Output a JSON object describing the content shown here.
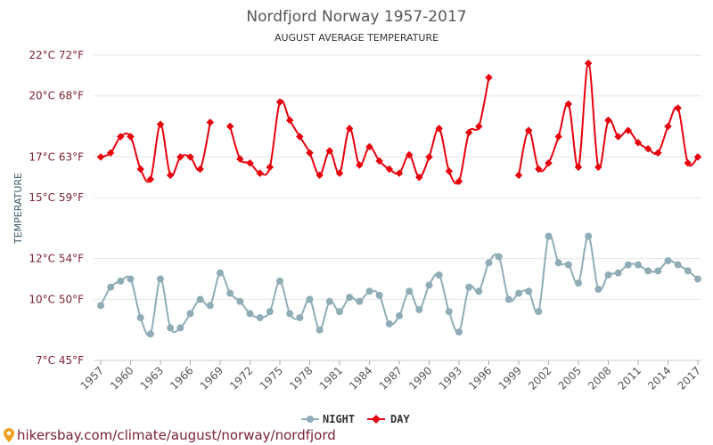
{
  "chart_data": {
    "type": "line",
    "title": "Nordfjord Norway 1957-2017",
    "subtitle": "AUGUST AVERAGE TEMPERATURE",
    "ylabel": "TEMPERATURE",
    "xlabel": "",
    "ylim": [
      7,
      22
    ],
    "x_ticks": [
      1957,
      1960,
      1963,
      1966,
      1969,
      1972,
      1975,
      1978,
      1981,
      1984,
      1987,
      1990,
      1993,
      1996,
      1999,
      2002,
      2005,
      2008,
      2011,
      2014,
      2017
    ],
    "y_ticks": [
      {
        "value": 7,
        "label": "7°C 45°F"
      },
      {
        "value": 10,
        "label": "10°C 50°F"
      },
      {
        "value": 12,
        "label": "12°C 54°F"
      },
      {
        "value": 15,
        "label": "15°C 59°F"
      },
      {
        "value": 17,
        "label": "17°C 63°F"
      },
      {
        "value": 20,
        "label": "20°C 68°F"
      },
      {
        "value": 22,
        "label": "22°C 72°F"
      }
    ],
    "grid": true,
    "legend_position": "bottom-center",
    "x": [
      1957,
      1958,
      1959,
      1960,
      1961,
      1962,
      1963,
      1964,
      1965,
      1966,
      1967,
      1968,
      1969,
      1970,
      1971,
      1972,
      1973,
      1974,
      1975,
      1976,
      1977,
      1978,
      1979,
      1980,
      1981,
      1982,
      1983,
      1984,
      1985,
      1986,
      1987,
      1988,
      1989,
      1990,
      1991,
      1992,
      1993,
      1994,
      1995,
      1996,
      1997,
      1998,
      1999,
      2000,
      2001,
      2002,
      2003,
      2004,
      2005,
      2006,
      2007,
      2008,
      2009,
      2010,
      2011,
      2012,
      2013,
      2014,
      2015,
      2016,
      2017
    ],
    "series": [
      {
        "name": "NIGHT",
        "color": "#8fadb7",
        "values": [
          9.7,
          10.6,
          10.9,
          11.0,
          9.1,
          8.3,
          11.0,
          8.6,
          8.6,
          9.3,
          10.0,
          9.7,
          11.3,
          10.3,
          9.9,
          9.3,
          9.1,
          9.4,
          10.9,
          9.3,
          9.1,
          10.0,
          8.5,
          9.9,
          9.4,
          10.1,
          9.9,
          10.4,
          10.2,
          8.8,
          9.2,
          10.4,
          9.5,
          10.7,
          11.2,
          9.4,
          8.4,
          10.6,
          10.4,
          11.8,
          12.1,
          10.0,
          10.3,
          10.4,
          9.4,
          13.1,
          11.8,
          11.7,
          10.8,
          13.1,
          10.5,
          11.2,
          11.3,
          11.7,
          11.7,
          11.4,
          11.4,
          11.9,
          11.7,
          11.4,
          11.0
        ]
      },
      {
        "name": "DAY",
        "color": "#e8000b",
        "values": [
          17.0,
          17.2,
          18.0,
          18.0,
          16.4,
          15.9,
          18.6,
          16.1,
          17.0,
          17.0,
          16.4,
          18.7,
          null,
          18.5,
          16.9,
          16.7,
          16.2,
          16.5,
          19.7,
          18.8,
          18.0,
          17.2,
          16.1,
          17.3,
          16.2,
          18.4,
          16.6,
          17.5,
          16.8,
          16.4,
          16.2,
          17.1,
          16.0,
          17.0,
          18.4,
          16.3,
          15.8,
          18.2,
          18.5,
          20.9,
          null,
          null,
          16.1,
          18.3,
          16.4,
          16.7,
          18.0,
          19.6,
          16.5,
          21.6,
          16.5,
          18.8,
          18.0,
          18.3,
          17.7,
          17.4,
          17.2,
          18.5,
          19.4,
          16.7,
          17.0
        ]
      }
    ]
  },
  "source": {
    "text": "hikersbay.com/climate/august/norway/nordfjord"
  }
}
